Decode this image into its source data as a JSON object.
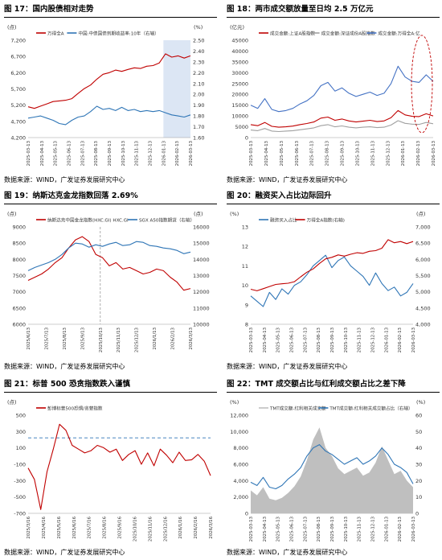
{
  "source_label": "数据来源：WIND，广发证券发展研究中心",
  "charts": [
    {
      "id": "fig17",
      "title": "图 17：国内股债相对走势",
      "chart_data": {
        "type": "line",
        "left_unit": "(点)",
        "right_unit": "(%)",
        "legend": [
          "万得全A",
          "中国:中债国债到期收益率:10年（右轴）"
        ],
        "left_ticks": [
          "7,200",
          "6,700",
          "6,200",
          "5,700",
          "5,200",
          "4,700",
          "4,200"
        ],
        "right_ticks": [
          "2.50",
          "2.40",
          "2.30",
          "2.20",
          "2.10",
          "2.00",
          "1.90",
          "1.80",
          "1.70",
          "1.60"
        ],
        "x_ticks": [
          "2025-03-13",
          "2025-04-13",
          "2025-05-13",
          "2025-06-13",
          "2025-07-13",
          "2025-08-13",
          "2025-09-13",
          "2025-10-13",
          "2025-11-13",
          "2025-12-13",
          "2026-01-13",
          "2026-02-13",
          "2026-03-13"
        ],
        "ylim_left": [
          4200,
          7200
        ],
        "ylim_right": [
          1.6,
          2.5
        ],
        "series": [
          {
            "axis": "left",
            "color": "#c00000",
            "values": [
              5150,
              5100,
              5170,
              5240,
              5310,
              5330,
              5350,
              5400,
              5560,
              5710,
              5820,
              6000,
              6150,
              6200,
              6280,
              6240,
              6300,
              6350,
              6330,
              6400,
              6420,
              6500,
              6780,
              6680,
              6720,
              6650,
              6720
            ]
          },
          {
            "axis": "right",
            "color": "#2e75b6",
            "values": [
              1.78,
              1.79,
              1.8,
              1.78,
              1.76,
              1.73,
              1.72,
              1.76,
              1.79,
              1.8,
              1.84,
              1.89,
              1.86,
              1.87,
              1.85,
              1.88,
              1.85,
              1.86,
              1.84,
              1.85,
              1.84,
              1.85,
              1.83,
              1.81,
              1.8,
              1.79,
              1.81
            ]
          }
        ],
        "shade_from": "2026-01-13"
      }
    },
    {
      "id": "fig18",
      "title": "图 18：两市成交额放量至日均 2.5 万亿元",
      "chart_data": {
        "type": "line",
        "left_unit": "(亿元)",
        "legend": [
          "成交金额:上证A股指数",
          "成交金额:深证成份A股指数",
          "成交金额:万得全A:亿"
        ],
        "left_ticks": [
          "45000",
          "40000",
          "35000",
          "30000",
          "25000",
          "20000",
          "15000",
          "10000",
          "5000",
          "0"
        ],
        "x_ticks": [
          "2025-03-13",
          "2025-04-13",
          "2025-05-13",
          "2025-06-13",
          "2025-07-13",
          "2025-08-13",
          "2025-09-13",
          "2025-10-13",
          "2025-11-13",
          "2025-12-13",
          "2026-01-13",
          "2026-02-13",
          "2026-03-13"
        ],
        "ylim_left": [
          0,
          45000
        ],
        "series": [
          {
            "axis": "left",
            "color": "#c00000",
            "values": [
              6000,
              5500,
              7000,
              5200,
              4800,
              5000,
              5300,
              6000,
              6500,
              7200,
              9000,
              9500,
              8000,
              8600,
              7700,
              7200,
              7600,
              8000,
              7400,
              7700,
              9200,
              12500,
              10500,
              9800,
              9700,
              11000,
              10000
            ]
          },
          {
            "axis": "left",
            "color": "#a0a0a0",
            "values": [
              3500,
              3200,
              4200,
              3000,
              2800,
              3000,
              3200,
              3600,
              4000,
              4500,
              5500,
              6000,
              5000,
              5400,
              4800,
              4500,
              4800,
              5000,
              4600,
              4800,
              5800,
              7800,
              6600,
              6200,
              6100,
              7000,
              6400
            ]
          },
          {
            "axis": "left",
            "color": "#4472c4",
            "values": [
              15000,
              13500,
              18000,
              13000,
              12000,
              12500,
              13500,
              15500,
              17000,
              19500,
              24000,
              25500,
              21500,
              23000,
              20500,
              19000,
              20000,
              21000,
              19500,
              20500,
              25000,
              33000,
              28000,
              26000,
              25500,
              29000,
              26000
            ]
          }
        ],
        "circle": true
      }
    },
    {
      "id": "fig19",
      "title": "图 19：纳斯达克金龙指数回落 2.69%",
      "chart_data": {
        "type": "line",
        "left_unit": "(点)",
        "right_unit": "(点)",
        "legend": [
          "纳斯达克中国金龙指数(HXC.GI) HXC.GI",
          "SGX A50指数期货（右轴）"
        ],
        "left_ticks": [
          "9000",
          "8500",
          "8000",
          "7500",
          "7000",
          "6500",
          "6000"
        ],
        "right_ticks": [
          "16000",
          "15000",
          "14000",
          "13000",
          "12000",
          "11000",
          "10000"
        ],
        "x_ticks": [
          "2025/6/13",
          "2025/7/13",
          "2025/8/13",
          "2025/9/13",
          "2025/10/13",
          "2025/11/13",
          "2025/12/13",
          "2026/1/13",
          "2026/2/13",
          "2026/3/13"
        ],
        "ylim_left": [
          6000,
          9000
        ],
        "ylim_right": [
          10000,
          16000
        ],
        "series": [
          {
            "axis": "left",
            "color": "#c00000",
            "values": [
              7350,
              7450,
              7550,
              7700,
              7900,
              8050,
              8350,
              8600,
              8700,
              8550,
              8150,
              8050,
              7800,
              7900,
              7700,
              7750,
              7650,
              7550,
              7600,
              7700,
              7650,
              7450,
              7300,
              7050,
              7100
            ]
          },
          {
            "axis": "right",
            "color": "#2e75b6",
            "values": [
              13300,
              13500,
              13650,
              13800,
              14000,
              14300,
              14700,
              15000,
              14950,
              14750,
              14900,
              14800,
              14950,
              15050,
              14850,
              14900,
              15100,
              15050,
              14850,
              14800,
              14700,
              14650,
              14550,
              14350,
              14450
            ]
          }
        ],
        "dashed_at": "2025/10/13"
      }
    },
    {
      "id": "fig20",
      "title": "图 20：融资买入占比边际回升",
      "chart_data": {
        "type": "line",
        "left_unit": "(%)",
        "right_unit": "(点)",
        "legend": [
          "融资买入占比",
          "万得全A指数(右轴)"
        ],
        "left_ticks": [
          "13",
          "12",
          "11",
          "10",
          "9",
          "8"
        ],
        "right_ticks": [
          "7,000",
          "6,500",
          "6,000",
          "5,500",
          "5,000",
          "4,500",
          "4,000"
        ],
        "x_ticks": [
          "2025-03-13",
          "2025-04-13",
          "2025-05-13",
          "2025-06-13",
          "2025-07-13",
          "2025-08-13",
          "2025-09-13",
          "2025-10-13",
          "2025-11-13",
          "2025-12-13",
          "2026-01-13",
          "2026-02-13",
          "2026-03-13"
        ],
        "ylim_left": [
          8,
          13.5
        ],
        "ylim_right": [
          4000,
          7200
        ],
        "series": [
          {
            "axis": "left",
            "color": "#2e75b6",
            "values": [
              9.6,
              9.3,
              9.0,
              9.8,
              9.4,
              10.0,
              9.7,
              10.2,
              10.4,
              10.8,
              11.3,
              11.6,
              11.9,
              11.2,
              11.6,
              11.8,
              11.3,
              11.0,
              10.7,
              10.2,
              10.9,
              10.3,
              9.9,
              10.1,
              9.6,
              9.8,
              10.3
            ]
          },
          {
            "axis": "right",
            "color": "#c00000",
            "values": [
              5150,
              5100,
              5170,
              5240,
              5310,
              5330,
              5350,
              5400,
              5560,
              5710,
              5820,
              6000,
              6150,
              6200,
              6280,
              6240,
              6300,
              6350,
              6330,
              6400,
              6420,
              6500,
              6780,
              6680,
              6720,
              6650,
              6720
            ]
          }
        ]
      }
    },
    {
      "id": "fig21",
      "title": "图 21：标普 500 恐贪指数跌入谨慎",
      "chart_data": {
        "type": "line",
        "left_unit": "(点)",
        "legend": [
          "彭博标普500恐惧/贪婪指数"
        ],
        "left_ticks": [
          "500",
          "300",
          "100",
          "-100",
          "-300",
          "-500",
          "-700"
        ],
        "x_ticks": [
          "2025/3/16",
          "2025/4/16",
          "2025/5/16",
          "2025/6/16",
          "2025/7/16",
          "2025/8/16",
          "2025/9/16",
          "2025/10/16",
          "2025/11/16",
          "2025/12/16",
          "2026/1/16",
          "2026/2/16",
          "2026/3/16"
        ],
        "ylim_left": [
          -750,
          550
        ],
        "reference_line": 250,
        "series": [
          {
            "axis": "left",
            "color": "#c00000",
            "values": [
              -150,
              -300,
              -700,
              -200,
              100,
              430,
              350,
              150,
              100,
              50,
              80,
              150,
              120,
              60,
              100,
              -50,
              30,
              80,
              -100,
              50,
              -120,
              100,
              20,
              -80,
              60,
              -50,
              -40,
              30,
              -60,
              -250
            ]
          }
        ]
      }
    },
    {
      "id": "fig22",
      "title": "图 22：TMT 成交额占比与红利成交额占比之差下降",
      "chart_data": {
        "type": "area",
        "left_unit": "(%)",
        "right_unit": "(%)",
        "legend": [
          "TMT成交额-红利相关成交额",
          "TMT成交额-红利相关成交额占比（右轴）"
        ],
        "left_ticks": [
          "12,000",
          "10,000",
          "8,000",
          "6,000",
          "4,000",
          "2,000",
          "0"
        ],
        "right_ticks": [
          "60",
          "50",
          "40",
          "30",
          "20",
          "10",
          "0"
        ],
        "x_ticks": [
          "2025-03-13",
          "2025-04-13",
          "2025-05-13",
          "2025-06-13",
          "2025-07-13",
          "2025-08-13",
          "2025-09-13",
          "2025-10-13",
          "2025-11-13",
          "2025-12-13",
          "2026-01-13",
          "2026-02-13",
          "2026-03-13"
        ],
        "ylim_left": [
          0,
          12000
        ],
        "ylim_right": [
          0,
          60
        ],
        "series": [
          {
            "axis": "left",
            "color": "#bfbfbf",
            "values": [
              2800,
              2200,
              3200,
              1800,
              1600,
              1900,
              2500,
              3300,
              4500,
              6500,
              9000,
              10500,
              8000,
              7000,
              5500,
              4800,
              5200,
              5600,
              4600,
              5000,
              6200,
              8200,
              6500,
              4800,
              5200,
              4000,
              3200
            ]
          },
          {
            "axis": "right",
            "color": "#2e75b6",
            "values": [
              19,
              17,
              22,
              16,
              15,
              17,
              21,
              24,
              28,
              35,
              40,
              42,
              38,
              36,
              33,
              30,
              32,
              34,
              30,
              32,
              35,
              40,
              36,
              30,
              28,
              25,
              18
            ]
          }
        ]
      }
    }
  ]
}
